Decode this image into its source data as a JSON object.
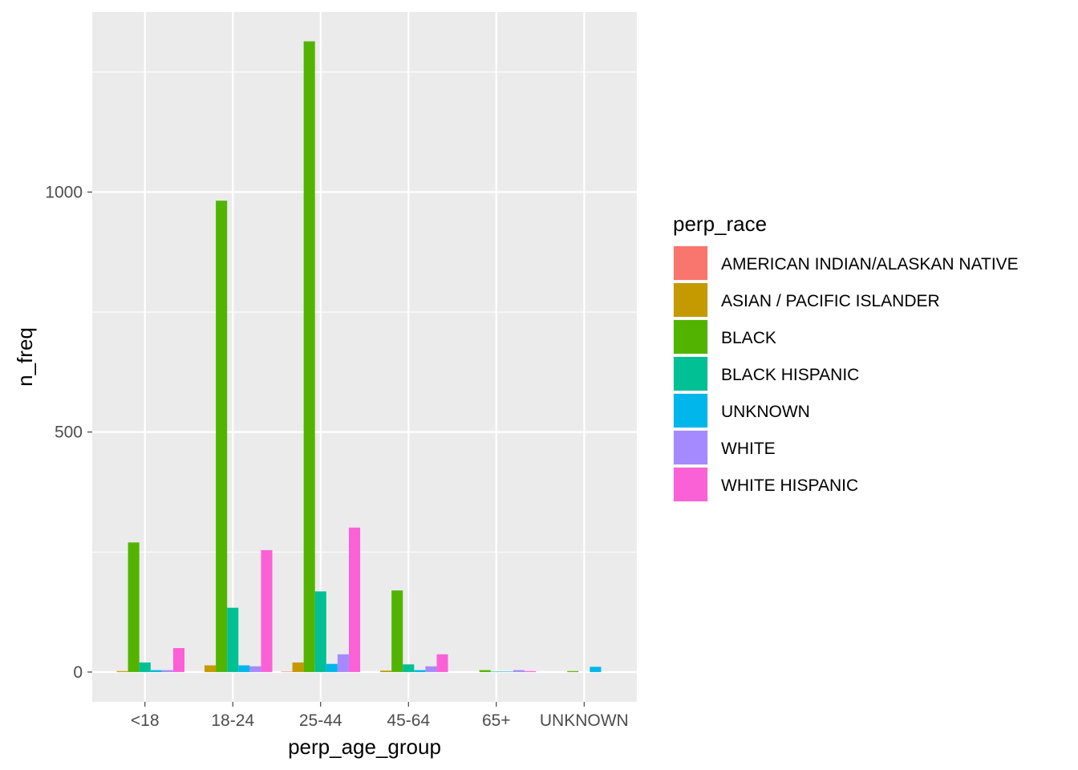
{
  "chart_data": {
    "type": "bar",
    "xlabel": "perp_age_group",
    "ylabel": "n_freq",
    "categories": [
      "<18",
      "18-24",
      "25-44",
      "45-64",
      "65+",
      "UNKNOWN"
    ],
    "y_ticks": [
      "0",
      "500",
      "1000"
    ],
    "y_tick_values": [
      0,
      500,
      1000
    ],
    "ylim": [
      -62,
      1375
    ],
    "grid": true,
    "legend": {
      "title": "perp_race",
      "position": "right"
    },
    "series": [
      {
        "name": "AMERICAN INDIAN/ALASKAN NATIVE",
        "color": "#F8766D",
        "values": [
          0,
          0,
          1,
          0,
          0,
          0
        ]
      },
      {
        "name": "ASIAN / PACIFIC ISLANDER",
        "color": "#C49A00",
        "values": [
          2,
          14,
          20,
          3,
          0,
          0
        ]
      },
      {
        "name": "BLACK",
        "color": "#53B400",
        "values": [
          270,
          982,
          1314,
          170,
          4,
          2
        ]
      },
      {
        "name": "BLACK HISPANIC",
        "color": "#00C094",
        "values": [
          20,
          134,
          168,
          16,
          1,
          0
        ]
      },
      {
        "name": "UNKNOWN",
        "color": "#00B6EB",
        "values": [
          4,
          14,
          17,
          4,
          1,
          11
        ]
      },
      {
        "name": "WHITE",
        "color": "#A58AFF",
        "values": [
          4,
          12,
          37,
          12,
          4,
          0
        ]
      },
      {
        "name": "WHITE HISPANIC",
        "color": "#FB61D7",
        "values": [
          50,
          254,
          301,
          37,
          2,
          0
        ]
      }
    ]
  }
}
